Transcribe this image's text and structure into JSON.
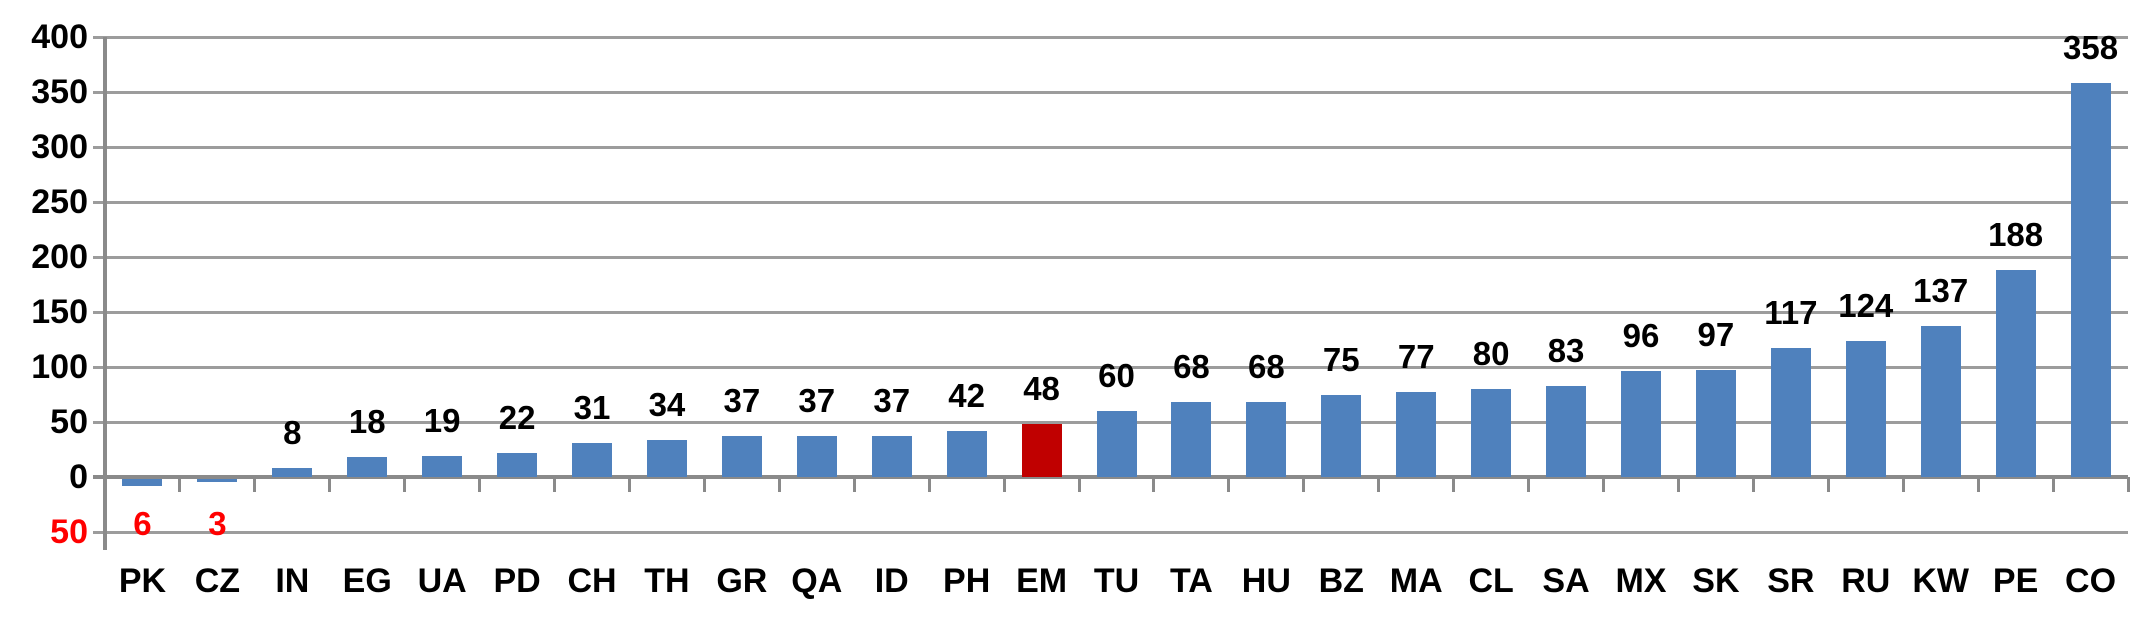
{
  "chart_data": {
    "type": "bar",
    "title": "",
    "xlabel": "",
    "ylabel": "",
    "categories": [
      "PK",
      "CZ",
      "IN",
      "EG",
      "UA",
      "PD",
      "CH",
      "TH",
      "GR",
      "QA",
      "ID",
      "PH",
      "EM",
      "TU",
      "TA",
      "HU",
      "BZ",
      "MA",
      "CL",
      "SA",
      "MX",
      "SK",
      "SR",
      "RU",
      "KW",
      "PE",
      "CO"
    ],
    "values": [
      -6,
      -3,
      8,
      18,
      19,
      22,
      31,
      34,
      37,
      37,
      37,
      42,
      48,
      60,
      68,
      68,
      75,
      77,
      80,
      83,
      96,
      97,
      117,
      124,
      137,
      188,
      358
    ],
    "data_labels": [
      "6",
      "3",
      "8",
      "18",
      "19",
      "22",
      "31",
      "34",
      "37",
      "37",
      "37",
      "42",
      "48",
      "60",
      "68",
      "68",
      "75",
      "77",
      "80",
      "83",
      "96",
      "97",
      "117",
      "124",
      "137",
      "188",
      "358"
    ],
    "highlight_category": "EM",
    "ylim": [
      -50,
      400
    ],
    "ytick_step": 50,
    "ytick_labels": [
      "400",
      "350",
      "300",
      "250",
      "200",
      "150",
      "100",
      "50",
      "0",
      "50"
    ],
    "grid": true,
    "legend": "none",
    "colors": {
      "bar": "#4F81BD",
      "highlight_bar": "#C00000",
      "negative_text": "#FF0000",
      "label_text": "#000000",
      "gridline": "#9C9C9C",
      "axis": "#8A8A8A",
      "background": "#FFFFFF"
    }
  }
}
